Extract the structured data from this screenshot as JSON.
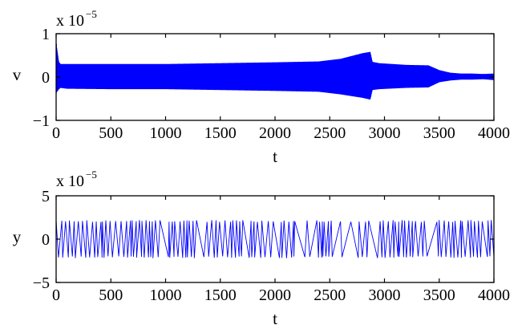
{
  "chart_data": [
    {
      "type": "line",
      "color": "#0000ff",
      "xlabel": "t",
      "ylabel": "v",
      "scale_factor": "x 10",
      "scale_exponent": "−5",
      "xlim": [
        0,
        4000
      ],
      "ylim": [
        -1,
        1
      ],
      "x_ticks": [
        0,
        500,
        1000,
        1500,
        2000,
        2500,
        3000,
        3500,
        4000
      ],
      "y_ticks": [
        -1,
        0,
        1
      ],
      "y_tick_labels": [
        "−1",
        "0",
        "1"
      ],
      "oscillation_envelope": {
        "center": 0.0,
        "t": [
          0,
          5,
          25,
          40,
          100,
          500,
          1000,
          1500,
          2000,
          2400,
          2600,
          2800,
          2870,
          2890,
          2950,
          3200,
          3400,
          3500,
          3600,
          3700,
          3800,
          3900,
          4000
        ],
        "upper": [
          0.9,
          0.7,
          0.35,
          0.3,
          0.3,
          0.3,
          0.3,
          0.32,
          0.34,
          0.36,
          0.42,
          0.55,
          0.58,
          0.35,
          0.32,
          0.28,
          0.27,
          0.16,
          0.1,
          0.08,
          0.08,
          0.07,
          0.08
        ],
        "lower": [
          -0.4,
          -0.35,
          -0.28,
          -0.25,
          -0.27,
          -0.28,
          -0.28,
          -0.3,
          -0.32,
          -0.34,
          -0.4,
          -0.48,
          -0.52,
          -0.3,
          -0.28,
          -0.25,
          -0.24,
          -0.12,
          -0.08,
          -0.06,
          -0.06,
          -0.05,
          -0.07
        ]
      }
    },
    {
      "type": "line",
      "color": "#0000ff",
      "xlabel": "t",
      "ylabel": "y",
      "scale_factor": "x 10",
      "scale_exponent": "−5",
      "xlim": [
        0,
        4000
      ],
      "ylim": [
        -5,
        5
      ],
      "x_ticks": [
        0,
        500,
        1000,
        1500,
        2000,
        2500,
        3000,
        3500,
        4000
      ],
      "y_ticks": [
        -5,
        0,
        5
      ],
      "y_tick_labels": [
        "−5",
        "0",
        "5"
      ],
      "switching_signal": {
        "high": 2.2,
        "low": -2.2,
        "gaps": [
          [
            2650,
            2760
          ],
          [
            3880,
            3940
          ]
        ]
      }
    }
  ]
}
